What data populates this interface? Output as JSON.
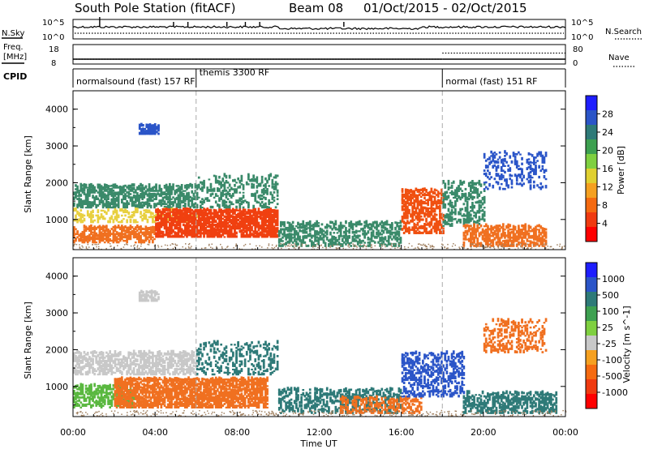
{
  "header": {
    "station": "South Pole Station (fitACF)",
    "beam": "Beam 08",
    "dates": "01/Oct/2015 - 02/Oct/2015"
  },
  "strips": {
    "nsky": {
      "label": "N.Sky",
      "ytick_top": "10^5",
      "ytick_bottom": "10^0"
    },
    "nsearch": {
      "label": "N.Search",
      "ytick_top": "10^5",
      "ytick_bottom": "10^0"
    },
    "freq": {
      "label_line1": "Freq.",
      "label_line2": "[MHz]",
      "ytick_top": "18",
      "ytick_bottom": "8",
      "series": [
        {
          "x": [
            0,
            18
          ],
          "y": [
            10.5,
            10.5
          ]
        },
        {
          "x": [
            18,
            24
          ],
          "y": [
            10.5,
            10.5
          ]
        }
      ]
    },
    "nave": {
      "label": "Nave",
      "ytick_top": "80",
      "ytick_bottom": "0",
      "series": [
        {
          "x": [
            0,
            6
          ],
          "y": [
            20,
            20
          ]
        },
        {
          "x": [
            6,
            18
          ],
          "y": [
            20,
            20
          ]
        },
        {
          "x": [
            18,
            24
          ],
          "y": [
            45,
            45
          ]
        }
      ]
    },
    "cpid": {
      "label": "CPID",
      "programs": [
        {
          "name": "normalsound (fast) 157 RF",
          "start": 0,
          "end": 6
        },
        {
          "name": "themis 3300 RF",
          "start": 6,
          "end": 18
        },
        {
          "name": "normal (fast) 151 RF",
          "start": 18,
          "end": 24
        }
      ]
    }
  },
  "xaxis": {
    "label": "Time UT",
    "ticks": [
      "00:00",
      "04:00",
      "08:00",
      "12:00",
      "16:00",
      "20:00",
      "00:00"
    ]
  },
  "chart_data": [
    {
      "type": "heatmap",
      "name": "power",
      "ylabel": "Slant Range [km]",
      "yticks": [
        "1000",
        "2000",
        "3000",
        "4000"
      ],
      "ylim": [
        180,
        4500
      ],
      "xlim": [
        0,
        24
      ],
      "colorbar": {
        "label": "Power [dB]",
        "ticks": [
          "4",
          "8",
          "12",
          "16",
          "20",
          "24",
          "28"
        ],
        "colors": [
          "#1e1eff",
          "#2b55c8",
          "#2e7a78",
          "#3da050",
          "#7fd040",
          "#e0d030",
          "#f5a020",
          "#f56a10",
          "#f03a10",
          "#ff0000"
        ]
      },
      "regions": [
        {
          "t0": 0.0,
          "t1": 6.0,
          "r0": 1300,
          "r1": 1900,
          "color": "#3a8a6a",
          "density": 0.55
        },
        {
          "t0": 0.0,
          "t1": 6.0,
          "r0": 900,
          "r1": 1250,
          "color": "#e8d040",
          "density": 0.35
        },
        {
          "t0": 0.0,
          "t1": 4.0,
          "r0": 350,
          "r1": 800,
          "color": "#f07020",
          "density": 0.6
        },
        {
          "t0": 4.0,
          "t1": 10.0,
          "r0": 500,
          "r1": 1250,
          "color": "#f04010",
          "density": 0.75
        },
        {
          "t0": 6.0,
          "t1": 10.0,
          "r0": 1300,
          "r1": 2200,
          "color": "#3a8a6a",
          "density": 0.25
        },
        {
          "t0": 10.0,
          "t1": 16.0,
          "r0": 250,
          "r1": 900,
          "color": "#3a8a6a",
          "density": 0.45
        },
        {
          "t0": 16.0,
          "t1": 18.0,
          "r0": 600,
          "r1": 1800,
          "color": "#f05010",
          "density": 0.55
        },
        {
          "t0": 18.0,
          "t1": 20.0,
          "r0": 800,
          "r1": 2000,
          "color": "#3a8a6a",
          "density": 0.35
        },
        {
          "t0": 19.0,
          "t1": 23.0,
          "r0": 250,
          "r1": 800,
          "color": "#f07020",
          "density": 0.55
        },
        {
          "t0": 20.0,
          "t1": 23.0,
          "r0": 1800,
          "r1": 2800,
          "color": "#2b55c8",
          "density": 0.25
        },
        {
          "t0": 3.2,
          "t1": 4.2,
          "r0": 3300,
          "r1": 3550,
          "color": "#2b55c8",
          "density": 0.7
        }
      ]
    },
    {
      "type": "heatmap",
      "name": "velocity",
      "ylabel": "Slant Range [km]",
      "yticks": [
        "1000",
        "2000",
        "3000",
        "4000"
      ],
      "ylim": [
        180,
        4500
      ],
      "xlim": [
        0,
        24
      ],
      "colorbar": {
        "label": "Velocity [m s^-1]",
        "ticks": [
          "1000",
          "500",
          "100",
          "25",
          "-25",
          "-100",
          "-500",
          "-1000"
        ],
        "colors": [
          "#1e1eff",
          "#2b55c8",
          "#2e7a78",
          "#3da050",
          "#7fd040",
          "#c8c8c8",
          "#f5a020",
          "#f56a10",
          "#f03a10",
          "#ff0000"
        ]
      },
      "regions": [
        {
          "t0": 0.0,
          "t1": 6.0,
          "r0": 1300,
          "r1": 1900,
          "color": "#c8c8c8",
          "density": 0.55
        },
        {
          "t0": 0.0,
          "t1": 3.0,
          "r0": 400,
          "r1": 1000,
          "color": "#5ab840",
          "density": 0.5
        },
        {
          "t0": 2.0,
          "t1": 9.5,
          "r0": 400,
          "r1": 1200,
          "color": "#f07020",
          "density": 0.7
        },
        {
          "t0": 6.0,
          "t1": 10.0,
          "r0": 1300,
          "r1": 2200,
          "color": "#2e7a78",
          "density": 0.25
        },
        {
          "t0": 10.0,
          "t1": 16.0,
          "r0": 250,
          "r1": 900,
          "color": "#2e7a78",
          "density": 0.4
        },
        {
          "t0": 13.0,
          "t1": 17.0,
          "r0": 250,
          "r1": 700,
          "color": "#f07020",
          "density": 0.35
        },
        {
          "t0": 16.0,
          "t1": 19.0,
          "r0": 700,
          "r1": 1900,
          "color": "#2b55c8",
          "density": 0.4
        },
        {
          "t0": 19.0,
          "t1": 23.5,
          "r0": 250,
          "r1": 800,
          "color": "#2e7a78",
          "density": 0.5
        },
        {
          "t0": 20.0,
          "t1": 23.0,
          "r0": 1900,
          "r1": 2800,
          "color": "#f07020",
          "density": 0.3
        },
        {
          "t0": 3.2,
          "t1": 4.2,
          "r0": 3300,
          "r1": 3550,
          "color": "#c8c8c8",
          "density": 0.7
        }
      ]
    }
  ]
}
